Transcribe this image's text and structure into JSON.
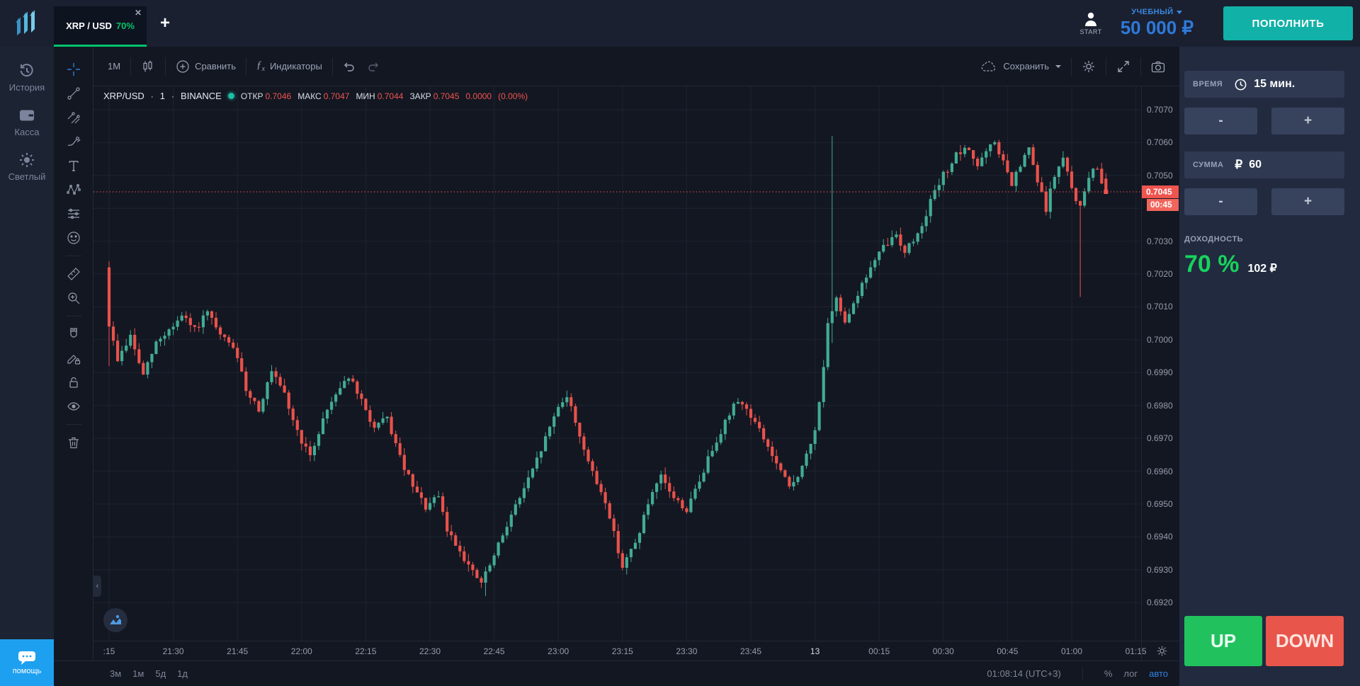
{
  "topbar": {
    "tab": {
      "symbol": "XRP / USD",
      "payout": "70%",
      "close": "✕"
    },
    "add_tab": "+",
    "user_label": "START",
    "account_type": "УЧЕБНЫЙ",
    "balance": "50 000 ₽",
    "deposit": "ПОПОЛНИТЬ"
  },
  "sidebar": {
    "items": [
      {
        "label": "История"
      },
      {
        "label": "Касса"
      },
      {
        "label": "Светлый"
      }
    ],
    "help": "помощь"
  },
  "toolbar": {
    "interval": "1M",
    "compare": "Сравнить",
    "indicators": "Индикаторы",
    "save": "Сохранить"
  },
  "legend": {
    "title": "XRP/USD",
    "sep1": "·",
    "interval": "1",
    "sep2": "·",
    "exchange": "BINANCE",
    "ohlc": [
      {
        "k": "ОТКР",
        "v": "0.7046"
      },
      {
        "k": "МАКС",
        "v": "0.7047"
      },
      {
        "k": "МИН",
        "v": "0.7044"
      },
      {
        "k": "ЗАКР",
        "v": "0.7045"
      }
    ],
    "change": "0.0000",
    "change_pct": "(0.00%)"
  },
  "footer": {
    "ranges": [
      "3м",
      "1м",
      "5д",
      "1д"
    ],
    "clock": "01:08:14 (UTC+3)",
    "percent": "%",
    "log": "лог",
    "auto": "авто"
  },
  "trade_panel": {
    "time_label": "ВРЕМЯ",
    "time_value": "15 мин.",
    "amount_label": "СУММА",
    "amount_currency": "₽",
    "amount_value": "60",
    "minus": "-",
    "plus": "+",
    "profit_label": "ДОХОДНОСТЬ",
    "profit_pct": "70 %",
    "profit_amount": "102 ₽",
    "up": "UP",
    "down": "DOWN"
  },
  "chart_data": {
    "type": "candlestick",
    "symbol": "XRP/USD",
    "interval_minutes": 1,
    "exchange": "BINANCE",
    "current_ohlc": {
      "open": 0.7046,
      "high": 0.7047,
      "low": 0.7044,
      "close": 0.7045,
      "change": "0.0000",
      "change_pct": "(0.00%)"
    },
    "current_price": 0.7045,
    "current_price_label": "0.7045",
    "countdown": "00:45",
    "price_axis": {
      "top_price": 0.70771,
      "bottom_price": 0.69084,
      "grid_min": 0.692,
      "grid_max": 0.707,
      "grid_step": 0.001,
      "hidden_label": 0.704
    },
    "time_axis": {
      "minutes_total": 240,
      "ticks": [
        {
          "t": 0,
          "label": ":15"
        },
        {
          "t": 15,
          "label": "21:30"
        },
        {
          "t": 30,
          "label": "21:45"
        },
        {
          "t": 45,
          "label": "22:00"
        },
        {
          "t": 60,
          "label": "22:15"
        },
        {
          "t": 75,
          "label": "22:30"
        },
        {
          "t": 90,
          "label": "22:45"
        },
        {
          "t": 105,
          "label": "23:00"
        },
        {
          "t": 120,
          "label": "23:15"
        },
        {
          "t": 135,
          "label": "23:30"
        },
        {
          "t": 150,
          "label": "23:45"
        },
        {
          "t": 165,
          "label": "13",
          "emph": true
        },
        {
          "t": 180,
          "label": "00:15"
        },
        {
          "t": 195,
          "label": "00:30"
        },
        {
          "t": 210,
          "label": "00:45"
        },
        {
          "t": 225,
          "label": "01:00"
        },
        {
          "t": 240,
          "label": "01:15"
        }
      ]
    },
    "price_path_waypoints": [
      [
        0,
        0.7022
      ],
      [
        1,
        0.7004
      ],
      [
        3,
        0.6994
      ],
      [
        6,
        0.7001
      ],
      [
        9,
        0.6989
      ],
      [
        12,
        0.6999
      ],
      [
        15,
        0.7003
      ],
      [
        18,
        0.7007
      ],
      [
        21,
        0.7003
      ],
      [
        24,
        0.7008
      ],
      [
        27,
        0.7001
      ],
      [
        30,
        0.6998
      ],
      [
        33,
        0.6985
      ],
      [
        36,
        0.6979
      ],
      [
        39,
        0.699
      ],
      [
        42,
        0.6983
      ],
      [
        45,
        0.6972
      ],
      [
        48,
        0.6964
      ],
      [
        51,
        0.6976
      ],
      [
        54,
        0.6984
      ],
      [
        57,
        0.6989
      ],
      [
        60,
        0.6981
      ],
      [
        63,
        0.6973
      ],
      [
        66,
        0.6976
      ],
      [
        69,
        0.6964
      ],
      [
        72,
        0.6955
      ],
      [
        75,
        0.6949
      ],
      [
        78,
        0.6952
      ],
      [
        80,
        0.6942
      ],
      [
        83,
        0.6936
      ],
      [
        86,
        0.6929
      ],
      [
        88,
        0.6926
      ],
      [
        91,
        0.6934
      ],
      [
        94,
        0.6944
      ],
      [
        97,
        0.6952
      ],
      [
        100,
        0.696
      ],
      [
        103,
        0.697
      ],
      [
        106,
        0.698
      ],
      [
        108,
        0.6983
      ],
      [
        111,
        0.6971
      ],
      [
        114,
        0.6959
      ],
      [
        117,
        0.6951
      ],
      [
        119,
        0.6941
      ],
      [
        121,
        0.6931
      ],
      [
        124,
        0.6938
      ],
      [
        127,
        0.695
      ],
      [
        130,
        0.6958
      ],
      [
        133,
        0.6952
      ],
      [
        136,
        0.6948
      ],
      [
        139,
        0.6957
      ],
      [
        142,
        0.6967
      ],
      [
        145,
        0.6975
      ],
      [
        148,
        0.6982
      ],
      [
        151,
        0.6977
      ],
      [
        154,
        0.697
      ],
      [
        157,
        0.6962
      ],
      [
        160,
        0.6955
      ],
      [
        163,
        0.6961
      ],
      [
        166,
        0.6972
      ],
      [
        168,
        0.6992
      ],
      [
        169,
        0.7004
      ],
      [
        171,
        0.7012
      ],
      [
        173,
        0.7006
      ],
      [
        176,
        0.7014
      ],
      [
        179,
        0.7022
      ],
      [
        182,
        0.7028
      ],
      [
        185,
        0.7032
      ],
      [
        187,
        0.7027
      ],
      [
        190,
        0.7032
      ],
      [
        193,
        0.7042
      ],
      [
        196,
        0.705
      ],
      [
        199,
        0.7056
      ],
      [
        202,
        0.7058
      ],
      [
        204,
        0.7053
      ],
      [
        206,
        0.7057
      ],
      [
        208,
        0.706
      ],
      [
        210,
        0.7054
      ],
      [
        212,
        0.7047
      ],
      [
        214,
        0.7053
      ],
      [
        216,
        0.7058
      ],
      [
        218,
        0.7048
      ],
      [
        220,
        0.704
      ],
      [
        222,
        0.705
      ],
      [
        224,
        0.7055
      ],
      [
        226,
        0.7046
      ],
      [
        228,
        0.704
      ],
      [
        230,
        0.705
      ],
      [
        232,
        0.7052
      ],
      [
        234,
        0.7045
      ]
    ],
    "candle_overrides": [
      {
        "t": 0,
        "o": 0.7022,
        "c": 0.7004,
        "l": 0.6992
      },
      {
        "t": 88,
        "l": 0.6922
      },
      {
        "t": 169,
        "h": 0.7062,
        "l": 0.6999
      },
      {
        "t": 227,
        "l": 0.7013
      },
      {
        "t": 233,
        "o": 0.7049,
        "c": 0.7045
      }
    ],
    "colors": {
      "up": "#42ab94",
      "down": "#e9524b",
      "grid": "#1d2331",
      "price_line": "#f0544f",
      "tag_bg": "#f0544f"
    }
  }
}
